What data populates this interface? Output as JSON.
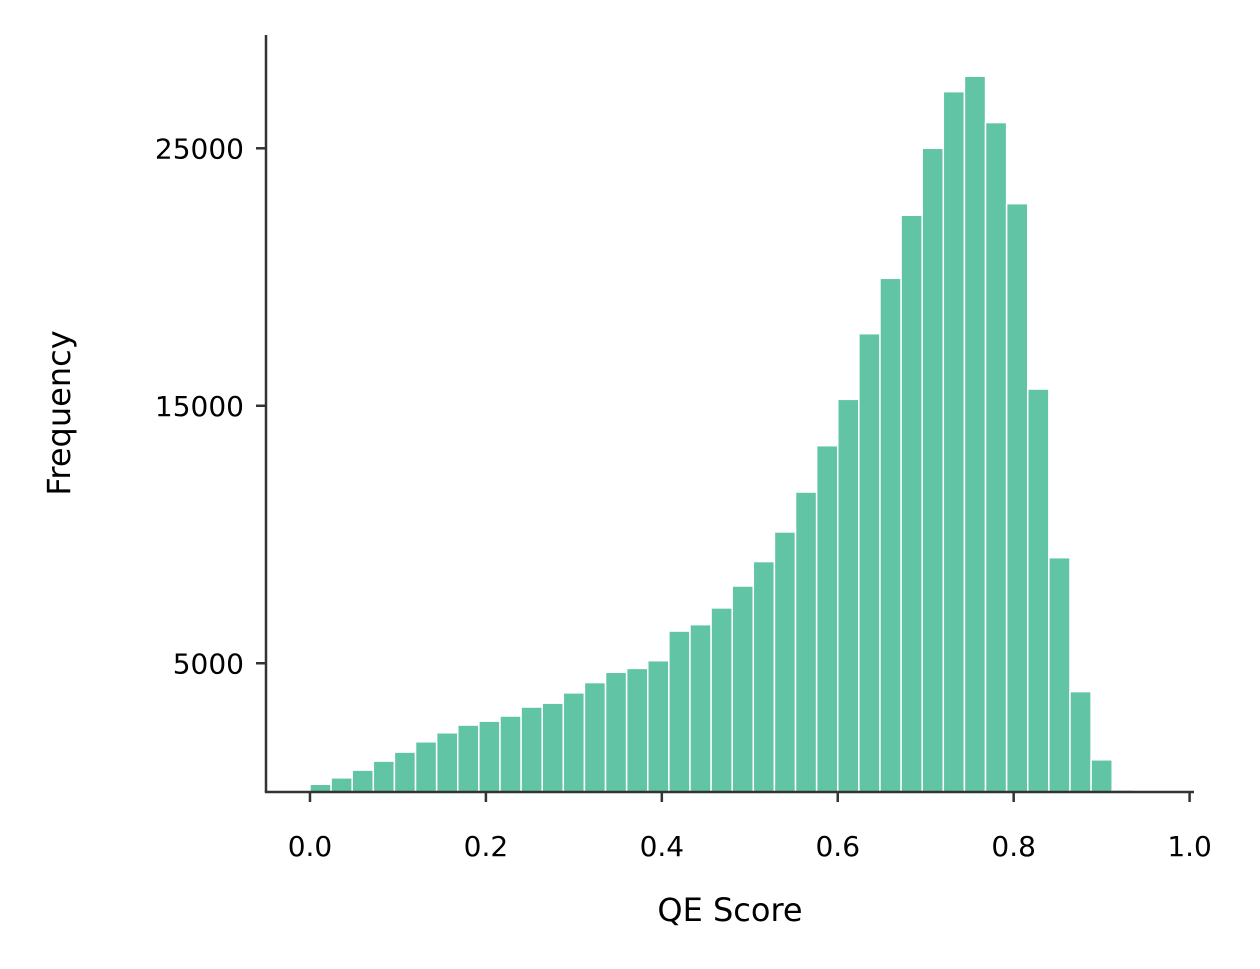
{
  "chart_data": {
    "type": "bar",
    "title": "",
    "xlabel": "QE Score",
    "ylabel": "Frequency",
    "xlim": [
      -0.05,
      1.005
    ],
    "ylim": [
      0,
      29400
    ],
    "xticks": [
      0.0,
      0.2,
      0.4,
      0.6,
      0.8,
      1.0
    ],
    "xtick_labels": [
      "0.0",
      "0.2",
      "0.4",
      "0.6",
      "0.8",
      "1.0"
    ],
    "yticks": [
      5000,
      15000,
      25000
    ],
    "ytick_labels": [
      "5000",
      "15000",
      "25000"
    ],
    "bin_width": 0.024,
    "bin_starts": [
      0.0,
      0.024,
      0.048,
      0.072,
      0.096,
      0.12,
      0.144,
      0.168,
      0.192,
      0.216,
      0.24,
      0.264,
      0.288,
      0.312,
      0.336,
      0.36,
      0.384,
      0.408,
      0.432,
      0.456,
      0.48,
      0.504,
      0.528,
      0.552,
      0.576,
      0.6,
      0.624,
      0.648,
      0.672,
      0.696,
      0.72,
      0.744,
      0.768,
      0.792,
      0.816,
      0.84,
      0.864,
      0.888,
      0.912
    ],
    "values": [
      300,
      550,
      850,
      1200,
      1550,
      1950,
      2300,
      2600,
      2750,
      2950,
      3300,
      3450,
      3850,
      4250,
      4650,
      4800,
      5100,
      6250,
      6500,
      7150,
      8000,
      8950,
      10100,
      11650,
      13450,
      15250,
      17800,
      19950,
      22400,
      25000,
      27200,
      27800,
      26000,
      22850,
      15650,
      9100,
      3900,
      1250,
      80
    ],
    "bar_color": "#61c4a5",
    "grid": false,
    "legend": "none"
  }
}
